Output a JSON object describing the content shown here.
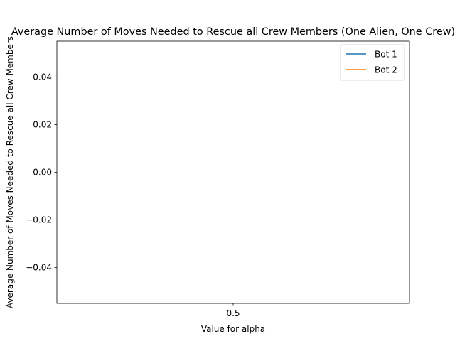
{
  "chart_data": {
    "type": "line",
    "title": "Average Number of Moves Needed to Rescue all Crew Members (One Alien, One Crew)",
    "xlabel": "Value for alpha",
    "ylabel": "Average Number of Moves Needed to Rescue all Crew Members",
    "x_ticks": [
      "0.5"
    ],
    "y_ticks": [
      "0.04",
      "0.02",
      "0.00",
      "−0.02",
      "−0.04"
    ],
    "y_tick_values": [
      0.04,
      0.02,
      0.0,
      -0.02,
      -0.04
    ],
    "ylim": [
      -0.055,
      0.055
    ],
    "grid": false,
    "legend_position": "top-right",
    "series": [
      {
        "name": "Bot 1",
        "color": "#1f77b4",
        "x": [],
        "y": []
      },
      {
        "name": "Bot 2",
        "color": "#ff7f0e",
        "x": [],
        "y": []
      }
    ]
  }
}
